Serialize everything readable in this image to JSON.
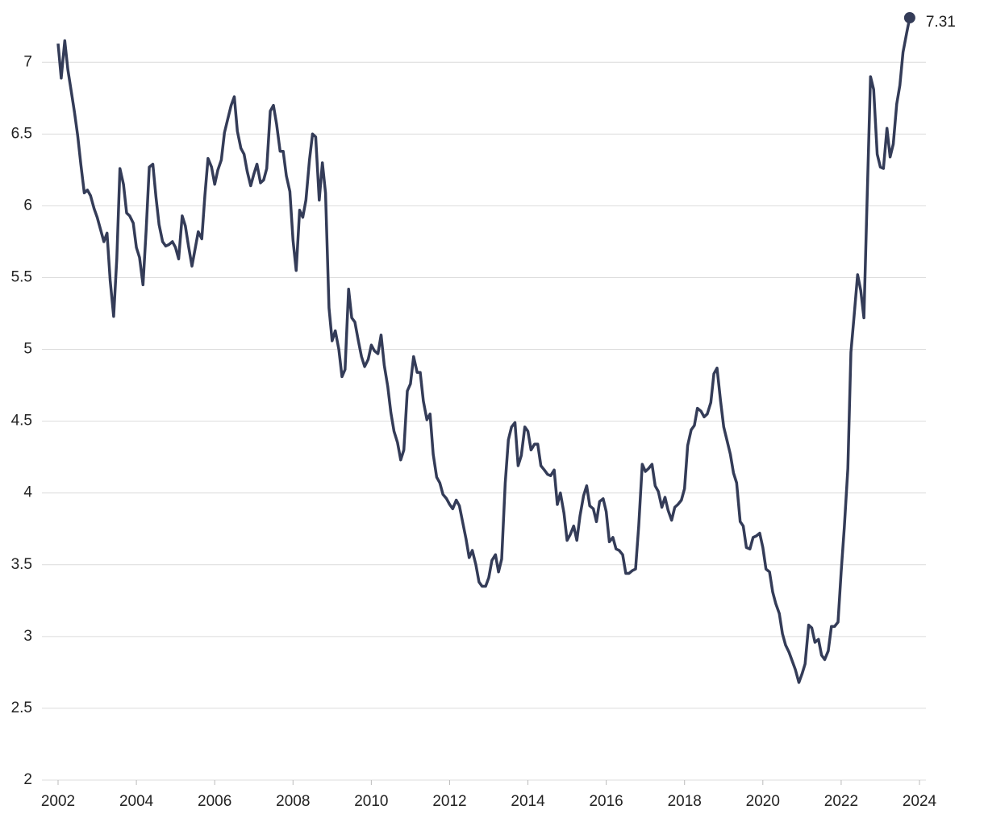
{
  "chart_data": {
    "type": "line",
    "x": [
      2002,
      2002.08,
      2002.17,
      2002.25,
      2002.33,
      2002.42,
      2002.5,
      2002.58,
      2002.67,
      2002.75,
      2002.83,
      2002.92,
      2003,
      2003.08,
      2003.17,
      2003.25,
      2003.33,
      2003.42,
      2003.5,
      2003.58,
      2003.67,
      2003.75,
      2003.83,
      2003.92,
      2004,
      2004.08,
      2004.17,
      2004.25,
      2004.33,
      2004.42,
      2004.5,
      2004.58,
      2004.67,
      2004.75,
      2004.83,
      2004.92,
      2005,
      2005.08,
      2005.17,
      2005.25,
      2005.33,
      2005.42,
      2005.5,
      2005.58,
      2005.67,
      2005.75,
      2005.83,
      2005.92,
      2006,
      2006.08,
      2006.17,
      2006.25,
      2006.33,
      2006.42,
      2006.5,
      2006.58,
      2006.67,
      2006.75,
      2006.83,
      2006.92,
      2007,
      2007.08,
      2007.17,
      2007.25,
      2007.33,
      2007.42,
      2007.5,
      2007.58,
      2007.67,
      2007.75,
      2007.83,
      2007.92,
      2008,
      2008.08,
      2008.17,
      2008.25,
      2008.33,
      2008.42,
      2008.5,
      2008.58,
      2008.67,
      2008.75,
      2008.83,
      2008.92,
      2009,
      2009.08,
      2009.17,
      2009.25,
      2009.33,
      2009.42,
      2009.5,
      2009.58,
      2009.67,
      2009.75,
      2009.83,
      2009.92,
      2010,
      2010.08,
      2010.17,
      2010.25,
      2010.33,
      2010.42,
      2010.5,
      2010.58,
      2010.67,
      2010.75,
      2010.83,
      2010.92,
      2011,
      2011.08,
      2011.17,
      2011.25,
      2011.33,
      2011.42,
      2011.5,
      2011.58,
      2011.67,
      2011.75,
      2011.83,
      2011.92,
      2012,
      2012.08,
      2012.17,
      2012.25,
      2012.33,
      2012.42,
      2012.5,
      2012.58,
      2012.67,
      2012.75,
      2012.83,
      2012.92,
      2013,
      2013.08,
      2013.17,
      2013.25,
      2013.33,
      2013.42,
      2013.5,
      2013.58,
      2013.67,
      2013.75,
      2013.83,
      2013.92,
      2014,
      2014.08,
      2014.17,
      2014.25,
      2014.33,
      2014.42,
      2014.5,
      2014.58,
      2014.67,
      2014.75,
      2014.83,
      2014.92,
      2015,
      2015.08,
      2015.17,
      2015.25,
      2015.33,
      2015.42,
      2015.5,
      2015.58,
      2015.67,
      2015.75,
      2015.83,
      2015.92,
      2016,
      2016.08,
      2016.17,
      2016.25,
      2016.33,
      2016.42,
      2016.5,
      2016.58,
      2016.67,
      2016.75,
      2016.83,
      2016.92,
      2017,
      2017.08,
      2017.17,
      2017.25,
      2017.33,
      2017.42,
      2017.5,
      2017.58,
      2017.67,
      2017.75,
      2017.83,
      2017.92,
      2018,
      2018.08,
      2018.17,
      2018.25,
      2018.33,
      2018.42,
      2018.5,
      2018.58,
      2018.67,
      2018.75,
      2018.83,
      2018.92,
      2019,
      2019.08,
      2019.17,
      2019.25,
      2019.33,
      2019.42,
      2019.5,
      2019.58,
      2019.67,
      2019.75,
      2019.83,
      2019.92,
      2020,
      2020.08,
      2020.17,
      2020.25,
      2020.33,
      2020.42,
      2020.5,
      2020.58,
      2020.67,
      2020.75,
      2020.83,
      2020.92,
      2021,
      2021.08,
      2021.17,
      2021.25,
      2021.33,
      2021.42,
      2021.5,
      2021.58,
      2021.67,
      2021.75,
      2021.83,
      2021.92,
      2022,
      2022.08,
      2022.17,
      2022.25,
      2022.33,
      2022.42,
      2022.5,
      2022.58,
      2022.67,
      2022.75,
      2022.83,
      2022.92,
      2023,
      2023.08,
      2023.17,
      2023.25,
      2023.33,
      2023.42,
      2023.5,
      2023.58,
      2023.67,
      2023.75
    ],
    "values": [
      7.13,
      6.89,
      7.15,
      6.95,
      6.81,
      6.65,
      6.49,
      6.29,
      6.09,
      6.11,
      6.07,
      5.98,
      5.92,
      5.84,
      5.75,
      5.81,
      5.48,
      5.23,
      5.63,
      6.26,
      6.15,
      5.95,
      5.93,
      5.88,
      5.71,
      5.64,
      5.45,
      5.83,
      6.27,
      6.29,
      6.06,
      5.87,
      5.75,
      5.72,
      5.73,
      5.75,
      5.71,
      5.63,
      5.93,
      5.86,
      5.72,
      5.58,
      5.7,
      5.82,
      5.77,
      6.07,
      6.33,
      6.27,
      6.15,
      6.25,
      6.32,
      6.51,
      6.6,
      6.7,
      6.76,
      6.52,
      6.4,
      6.36,
      6.24,
      6.14,
      6.22,
      6.29,
      6.16,
      6.18,
      6.26,
      6.66,
      6.7,
      6.57,
      6.38,
      6.38,
      6.21,
      6.1,
      5.76,
      5.55,
      5.97,
      5.92,
      6.04,
      6.32,
      6.5,
      6.48,
      6.04,
      6.3,
      6.09,
      5.29,
      5.06,
      5.13,
      5.0,
      4.81,
      4.86,
      5.42,
      5.22,
      5.19,
      5.06,
      4.95,
      4.88,
      4.93,
      5.03,
      4.99,
      4.97,
      5.1,
      4.89,
      4.74,
      4.56,
      4.43,
      4.35,
      4.23,
      4.3,
      4.71,
      4.76,
      4.95,
      4.84,
      4.84,
      4.64,
      4.51,
      4.55,
      4.27,
      4.11,
      4.07,
      3.99,
      3.96,
      3.92,
      3.89,
      3.95,
      3.91,
      3.8,
      3.68,
      3.55,
      3.6,
      3.5,
      3.38,
      3.35,
      3.35,
      3.41,
      3.53,
      3.57,
      3.45,
      3.54,
      4.07,
      4.37,
      4.46,
      4.49,
      4.19,
      4.26,
      4.46,
      4.43,
      4.3,
      4.34,
      4.34,
      4.19,
      4.16,
      4.13,
      4.12,
      4.16,
      3.92,
      4.0,
      3.86,
      3.67,
      3.71,
      3.77,
      3.67,
      3.84,
      3.98,
      4.05,
      3.91,
      3.89,
      3.8,
      3.94,
      3.96,
      3.87,
      3.66,
      3.69,
      3.61,
      3.6,
      3.57,
      3.44,
      3.44,
      3.46,
      3.47,
      3.77,
      4.2,
      4.15,
      4.17,
      4.2,
      4.05,
      4.01,
      3.9,
      3.97,
      3.88,
      3.81,
      3.9,
      3.92,
      3.95,
      4.03,
      4.33,
      4.44,
      4.47,
      4.59,
      4.57,
      4.53,
      4.55,
      4.63,
      4.83,
      4.87,
      4.64,
      4.46,
      4.37,
      4.27,
      4.14,
      4.07,
      3.8,
      3.77,
      3.62,
      3.61,
      3.69,
      3.7,
      3.72,
      3.62,
      3.47,
      3.45,
      3.31,
      3.23,
      3.16,
      3.02,
      2.94,
      2.89,
      2.83,
      2.77,
      2.68,
      2.74,
      2.81,
      3.08,
      3.06,
      2.96,
      2.98,
      2.87,
      2.84,
      2.9,
      3.07,
      3.07,
      3.1,
      3.45,
      3.76,
      4.17,
      4.98,
      5.23,
      5.52,
      5.41,
      5.22,
      6.11,
      6.9,
      6.81,
      6.36,
      6.27,
      6.26,
      6.54,
      6.34,
      6.43,
      6.71,
      6.84,
      7.07,
      7.2,
      7.31
    ],
    "color": "#343c58",
    "xlim": [
      2002,
      2024
    ],
    "xticks": [
      2002,
      2004,
      2006,
      2008,
      2010,
      2012,
      2014,
      2016,
      2018,
      2020,
      2022,
      2024
    ],
    "ylim": [
      2,
      7.4
    ],
    "yticks": [
      2,
      2.5,
      3,
      3.5,
      4,
      4.5,
      5,
      5.5,
      6,
      6.5,
      7
    ],
    "grid": true
  }
}
